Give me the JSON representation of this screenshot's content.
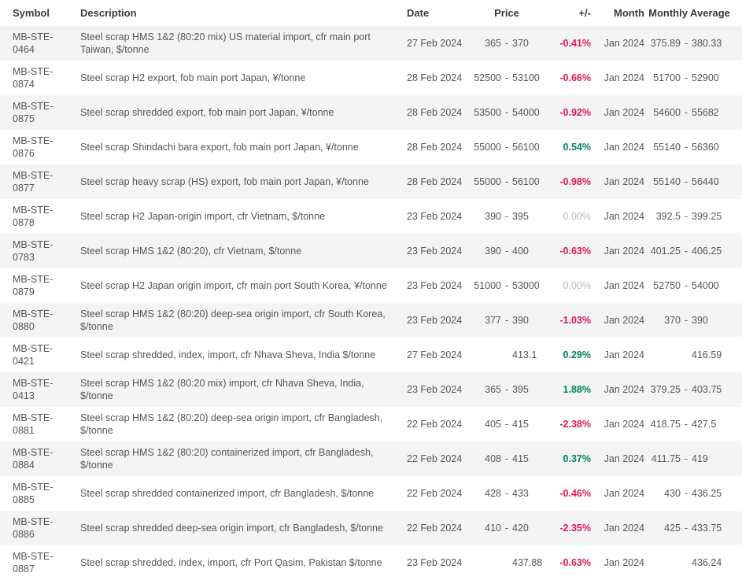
{
  "colors": {
    "negative": "#e6174e",
    "positive": "#00855c",
    "neutral": "#b6b8c6",
    "row_stripe": "#f4f4f5",
    "body_text": "#55565c",
    "header_text": "#3c3c3e"
  },
  "table": {
    "range_separator": "-",
    "headers": {
      "symbol": "Symbol",
      "description": "Description",
      "date": "Date",
      "price": "Price",
      "change": "+/-",
      "month": "Month",
      "monthly_average": "Monthly Average"
    },
    "rows": [
      {
        "symbol": "MB-STE-0464",
        "description": "Steel scrap HMS 1&2 (80:20 mix) US material import, cfr main port Taiwan, $/tonne",
        "date": "27 Feb 2024",
        "price_low": "365",
        "price_high": "370",
        "change": "-0.41%",
        "change_dir": "negative",
        "month": "Jan 2024",
        "avg_low": "375.89",
        "avg_high": "380.33"
      },
      {
        "symbol": "MB-STE-0874",
        "description": "Steel scrap H2 export, fob main port Japan, ¥/tonne",
        "date": "28 Feb 2024",
        "price_low": "52500",
        "price_high": "53100",
        "change": "-0.66%",
        "change_dir": "negative",
        "month": "Jan 2024",
        "avg_low": "51700",
        "avg_high": "52900"
      },
      {
        "symbol": "MB-STE-0875",
        "description": "Steel scrap shredded export, fob main port Japan, ¥/tonne",
        "date": "28 Feb 2024",
        "price_low": "53500",
        "price_high": "54000",
        "change": "-0.92%",
        "change_dir": "negative",
        "month": "Jan 2024",
        "avg_low": "54600",
        "avg_high": "55682"
      },
      {
        "symbol": "MB-STE-0876",
        "description": "Steel scrap Shindachi bara export, fob main port Japan, ¥/tonne",
        "date": "28 Feb 2024",
        "price_low": "55000",
        "price_high": "56100",
        "change": "0.54%",
        "change_dir": "positive",
        "month": "Jan 2024",
        "avg_low": "55140",
        "avg_high": "56360"
      },
      {
        "symbol": "MB-STE-0877",
        "description": "Steel scrap heavy scrap (HS) export, fob main port Japan, ¥/tonne",
        "date": "28 Feb 2024",
        "price_low": "55000",
        "price_high": "56100",
        "change": "-0.98%",
        "change_dir": "negative",
        "month": "Jan 2024",
        "avg_low": "55140",
        "avg_high": "56440"
      },
      {
        "symbol": "MB-STE-0878",
        "description": "Steel scrap H2 Japan-origin import, cfr Vietnam, $/tonne",
        "date": "23 Feb 2024",
        "price_low": "390",
        "price_high": "395",
        "change": "0.00%",
        "change_dir": "neutral",
        "month": "Jan 2024",
        "avg_low": "392.5",
        "avg_high": "399.25"
      },
      {
        "symbol": "MB-STE-0783",
        "description": "Steel scrap HMS 1&2 (80:20), cfr Vietnam, $/tonne",
        "date": "23 Feb 2024",
        "price_low": "390",
        "price_high": "400",
        "change": "-0.63%",
        "change_dir": "negative",
        "month": "Jan 2024",
        "avg_low": "401.25",
        "avg_high": "406.25"
      },
      {
        "symbol": "MB-STE-0879",
        "description": "Steel scrap H2 Japan origin import, cfr main port South Korea, ¥/tonne",
        "date": "23 Feb 2024",
        "price_low": "51000",
        "price_high": "53000",
        "change": "0.00%",
        "change_dir": "neutral",
        "month": "Jan 2024",
        "avg_low": "52750",
        "avg_high": "54000"
      },
      {
        "symbol": "MB-STE-0880",
        "description": "Steel scrap HMS 1&2 (80:20) deep-sea origin import, cfr South Korea, $/tonne",
        "date": "23 Feb 2024",
        "price_low": "377",
        "price_high": "390",
        "change": "-1.03%",
        "change_dir": "negative",
        "month": "Jan 2024",
        "avg_low": "370",
        "avg_high": "390"
      },
      {
        "symbol": "MB-STE-0421",
        "description": "Steel scrap shredded, index, import, cfr Nhava Sheva, India $/tonne",
        "date": "27 Feb 2024",
        "price_low": "",
        "price_high": "413.1",
        "change": "0.29%",
        "change_dir": "positive",
        "month": "Jan 2024",
        "avg_low": "",
        "avg_high": "416.59"
      },
      {
        "symbol": "MB-STE-0413",
        "description": "Steel scrap HMS 1&2 (80:20 mix) import, cfr Nhava Sheva, India, $/tonne",
        "date": "23 Feb 2024",
        "price_low": "365",
        "price_high": "395",
        "change": "1.88%",
        "change_dir": "positive",
        "month": "Jan 2024",
        "avg_low": "379.25",
        "avg_high": "403.75"
      },
      {
        "symbol": "MB-STE-0881",
        "description": "Steel scrap HMS 1&2 (80:20) deep-sea origin import, cfr Bangladesh, $/tonne",
        "date": "22 Feb 2024",
        "price_low": "405",
        "price_high": "415",
        "change": "-2.38%",
        "change_dir": "negative",
        "month": "Jan 2024",
        "avg_low": "418.75",
        "avg_high": "427.5"
      },
      {
        "symbol": "MB-STE-0884",
        "description": "Steel scrap HMS 1&2 (80:20) containerized import, cfr Bangladesh, $/tonne",
        "date": "22 Feb 2024",
        "price_low": "408",
        "price_high": "415",
        "change": "0.37%",
        "change_dir": "positive",
        "month": "Jan 2024",
        "avg_low": "411.75",
        "avg_high": "419"
      },
      {
        "symbol": "MB-STE-0885",
        "description": "Steel scrap shredded containerized import, cfr Bangladesh, $/tonne",
        "date": "22 Feb 2024",
        "price_low": "428",
        "price_high": "433",
        "change": "-0.46%",
        "change_dir": "negative",
        "month": "Jan 2024",
        "avg_low": "430",
        "avg_high": "436.25"
      },
      {
        "symbol": "MB-STE-0886",
        "description": "Steel scrap shredded deep-sea origin import, cfr Bangladesh, $/tonne",
        "date": "22 Feb 2024",
        "price_low": "410",
        "price_high": "420",
        "change": "-2.35%",
        "change_dir": "negative",
        "month": "Jan 2024",
        "avg_low": "425",
        "avg_high": "433.75"
      },
      {
        "symbol": "MB-STE-0887",
        "description": "Steel scrap shredded, index, import, cfr Port Qasim, Pakistan $/tonne",
        "date": "23 Feb 2024",
        "price_low": "",
        "price_high": "437.88",
        "change": "-0.63%",
        "change_dir": "negative",
        "month": "Jan 2024",
        "avg_low": "",
        "avg_high": "436.24"
      }
    ]
  }
}
